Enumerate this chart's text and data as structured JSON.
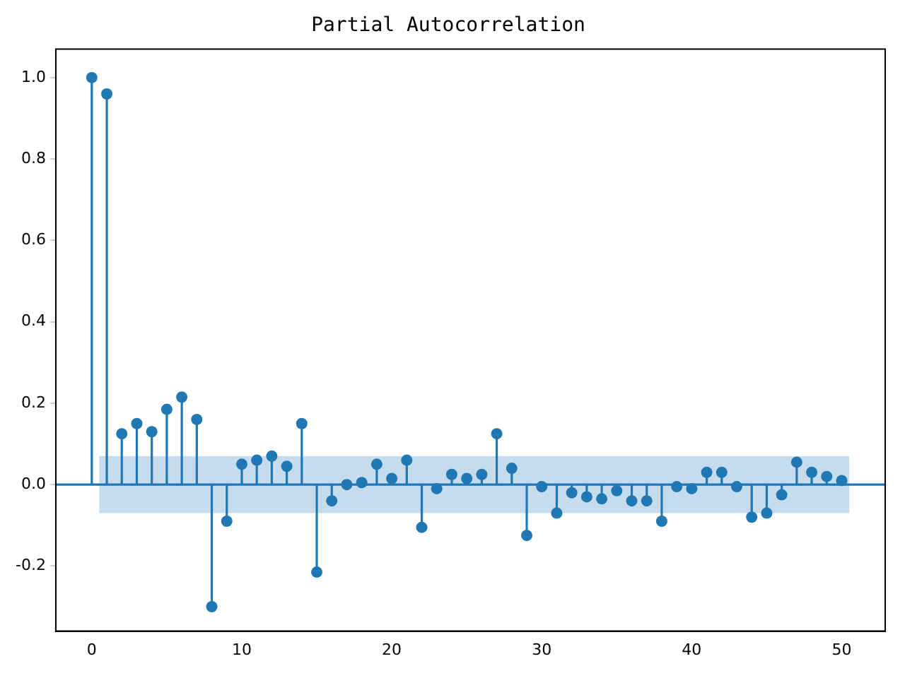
{
  "chart_data": {
    "type": "lollipop",
    "title": "Partial Autocorrelation",
    "x": [
      0,
      1,
      2,
      3,
      4,
      5,
      6,
      7,
      8,
      9,
      10,
      11,
      12,
      13,
      14,
      15,
      16,
      17,
      18,
      19,
      20,
      21,
      22,
      23,
      24,
      25,
      26,
      27,
      28,
      29,
      30,
      31,
      32,
      33,
      34,
      35,
      36,
      37,
      38,
      39,
      40,
      41,
      42,
      43,
      44,
      45,
      46,
      47,
      48,
      49,
      50
    ],
    "series": [
      {
        "color": "#1f77b4",
        "values": [
          1.0,
          0.96,
          0.125,
          0.15,
          0.13,
          0.185,
          0.215,
          0.16,
          -0.3,
          -0.09,
          0.05,
          0.06,
          0.07,
          0.045,
          0.15,
          -0.215,
          -0.04,
          0.0,
          0.005,
          0.05,
          0.015,
          0.06,
          -0.105,
          -0.01,
          0.025,
          0.015,
          0.025,
          0.125,
          0.04,
          -0.125,
          -0.005,
          -0.07,
          -0.02,
          -0.03,
          -0.035,
          -0.015,
          -0.04,
          -0.04,
          -0.09,
          -0.005,
          -0.01,
          0.03,
          0.03,
          -0.005,
          -0.08,
          -0.07,
          -0.025,
          0.055,
          0.03,
          0.02,
          0.01
        ]
      }
    ],
    "bands": [
      {
        "axis": "y",
        "from": -0.07,
        "to": 0.07,
        "color": "#c6dcec"
      }
    ],
    "ref_lines": [
      {
        "axis": "y",
        "value": 0,
        "color": "#1f77b4"
      }
    ],
    "xlim": [
      -2.4,
      52.9
    ],
    "xticks": [
      0,
      10,
      20,
      30,
      40,
      50
    ],
    "ylim": [
      -0.36,
      1.07
    ],
    "yticks": [
      -0.2,
      {
        "value": 0,
        "label": "0.0"
      },
      0.2,
      0.4,
      0.6,
      0.8,
      {
        "value": 1,
        "label": "1.0"
      }
    ],
    "grid": false,
    "legend": false,
    "marker": "circle"
  }
}
